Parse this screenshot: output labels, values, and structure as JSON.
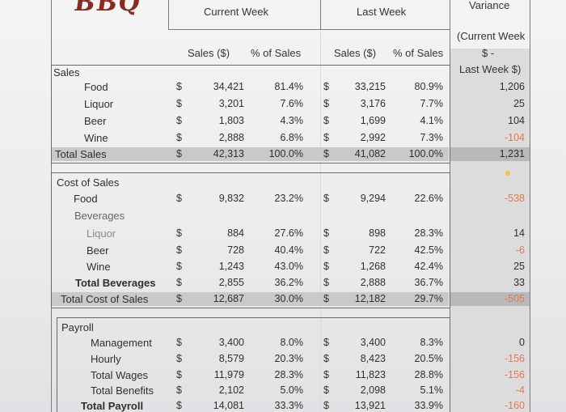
{
  "logo": "BBQ",
  "headers": {
    "current_week": "Current Week",
    "last_week": "Last Week",
    "variance": "Variance",
    "sales_dollar": "Sales ($)",
    "pct_sales": "% of Sales",
    "sales_dollar2": "Sales ($)",
    "pct_sales2": "% of Sales",
    "variance_note_1": "(Current Week",
    "variance_note_2": "$ -",
    "variance_note_3": "Last Week $)"
  },
  "currency": "$",
  "sections": {
    "sales": "Sales",
    "cost_of_sales": "Cost of Sales",
    "beverages": "Beverages",
    "payroll": "Payroll"
  },
  "rows": {
    "food": {
      "label": "Food",
      "cur": "34,421",
      "cur_pct": "81.4%",
      "last": "33,215",
      "last_pct": "80.9%",
      "var": "1,206"
    },
    "liquor": {
      "label": "Liquor",
      "cur": "3,201",
      "cur_pct": "7.6%",
      "last": "3,176",
      "last_pct": "7.7%",
      "var": "25"
    },
    "beer": {
      "label": "Beer",
      "cur": "1,803",
      "cur_pct": "4.3%",
      "last": "1,699",
      "last_pct": "4.1%",
      "var": "104"
    },
    "wine": {
      "label": "Wine",
      "cur": "2,888",
      "cur_pct": "6.8%",
      "last": "2,992",
      "last_pct": "7.3%",
      "var": "-104"
    },
    "total_sales": {
      "label": "Total Sales",
      "cur": "42,313",
      "cur_pct": "100.0%",
      "last": "41,082",
      "last_pct": "100.0%",
      "var": "1,231"
    },
    "cos_food": {
      "label": "Food",
      "cur": "9,832",
      "cur_pct": "23.2%",
      "last": "9,294",
      "last_pct": "22.6%",
      "var": "-538"
    },
    "cos_liquor": {
      "label": "Liquor",
      "cur": "884",
      "cur_pct": "27.6%",
      "last": "898",
      "last_pct": "28.3%",
      "var": "14"
    },
    "cos_beer": {
      "label": "Beer",
      "cur": "728",
      "cur_pct": "40.4%",
      "last": "722",
      "last_pct": "42.5%",
      "var": "-6"
    },
    "cos_wine": {
      "label": "Wine",
      "cur": "1,243",
      "cur_pct": "43.0%",
      "last": "1,268",
      "last_pct": "42.4%",
      "var": "25"
    },
    "total_bev": {
      "label": "Total Beverages",
      "cur": "2,855",
      "cur_pct": "36.2%",
      "last": "2,888",
      "last_pct": "36.7%",
      "var": "33"
    },
    "total_cos": {
      "label": "Total Cost of Sales",
      "cur": "12,687",
      "cur_pct": "30.0%",
      "last": "12,182",
      "last_pct": "29.7%",
      "var": "-505"
    },
    "management": {
      "label": "Management",
      "cur": "3,400",
      "cur_pct": "8.0%",
      "last": "3,400",
      "last_pct": "8.3%",
      "var": "0"
    },
    "hourly": {
      "label": "Hourly",
      "cur": "8,579",
      "cur_pct": "20.3%",
      "last": "8,423",
      "last_pct": "20.5%",
      "var": "-156"
    },
    "total_wages": {
      "label": "Total Wages",
      "cur": "11,979",
      "cur_pct": "28.3%",
      "last": "11,823",
      "last_pct": "28.8%",
      "var": "-156"
    },
    "total_benefits": {
      "label": "Total Benefits",
      "cur": "2,102",
      "cur_pct": "5.0%",
      "last": "2,098",
      "last_pct": "5.1%",
      "var": "-4"
    },
    "total_payroll": {
      "label": "Total Payroll",
      "cur": "14,081",
      "cur_pct": "33.3%",
      "last": "13,921",
      "last_pct": "33.9%",
      "var": "-160"
    }
  },
  "colors": {
    "negative": "#e07a4a",
    "highlight_dot": "#f6c24a",
    "total_fill": "#c9c9cc"
  }
}
